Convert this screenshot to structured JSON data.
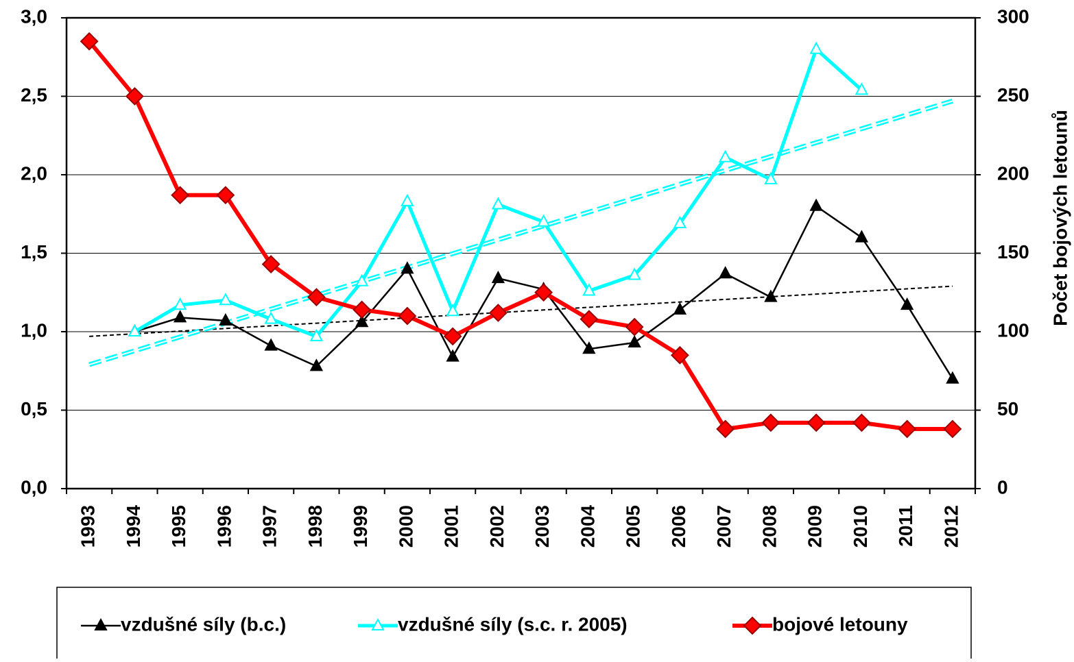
{
  "chart_data": {
    "type": "line",
    "categories": [
      "1993",
      "1994",
      "1995",
      "1996",
      "1997",
      "1998",
      "1999",
      "2000",
      "2001",
      "2002",
      "2003",
      "2004",
      "2005",
      "2006",
      "2007",
      "2008",
      "2009",
      "2010",
      "2011",
      "2012"
    ],
    "y2_label": "Počet bojových letounů",
    "ylim": [
      0,
      3
    ],
    "yticks": [
      {
        "value": 0,
        "label": "0,0"
      },
      {
        "value": 0.5,
        "label": "0,5"
      },
      {
        "value": 1,
        "label": "1,0"
      },
      {
        "value": 1.5,
        "label": "1,5"
      },
      {
        "value": 2,
        "label": "2,0"
      },
      {
        "value": 2.5,
        "label": "2,5"
      },
      {
        "value": 3,
        "label": "3,0"
      }
    ],
    "y2lim": [
      0,
      300
    ],
    "y2ticks": [
      0,
      50,
      100,
      150,
      200,
      250,
      300
    ],
    "grid": true,
    "series": [
      {
        "name": "vzdušné síly (b.c.)",
        "color": "#000000",
        "marker": "triangle-filled",
        "values": [
          null,
          1.0,
          1.09,
          1.07,
          0.91,
          0.78,
          1.06,
          1.4,
          0.84,
          1.34,
          1.27,
          0.89,
          0.93,
          1.14,
          1.37,
          1.22,
          1.8,
          1.6,
          1.17,
          0.7
        ]
      },
      {
        "name": "vzdušné síly (s.c. r. 2005)",
        "color": "#00ffff",
        "marker": "triangle-open",
        "values": [
          null,
          1.0,
          1.17,
          1.2,
          1.08,
          0.97,
          1.32,
          1.83,
          1.13,
          1.81,
          1.7,
          1.26,
          1.36,
          1.69,
          2.11,
          1.97,
          2.8,
          2.54,
          null,
          null
        ]
      },
      {
        "name": "bojové letouny",
        "color": "#ff0000",
        "marker": "diamond",
        "axis": "y2",
        "values": [
          285,
          250,
          187,
          187,
          143,
          122,
          114,
          110,
          97,
          112,
          125,
          108,
          103,
          85,
          38,
          42,
          42,
          42,
          38,
          38
        ]
      }
    ],
    "trendlines": [
      {
        "color": "#000000",
        "values": [
          0.97,
          1.29
        ]
      },
      {
        "color": "#00ffff",
        "values": [
          0.79,
          2.47
        ]
      }
    ]
  }
}
